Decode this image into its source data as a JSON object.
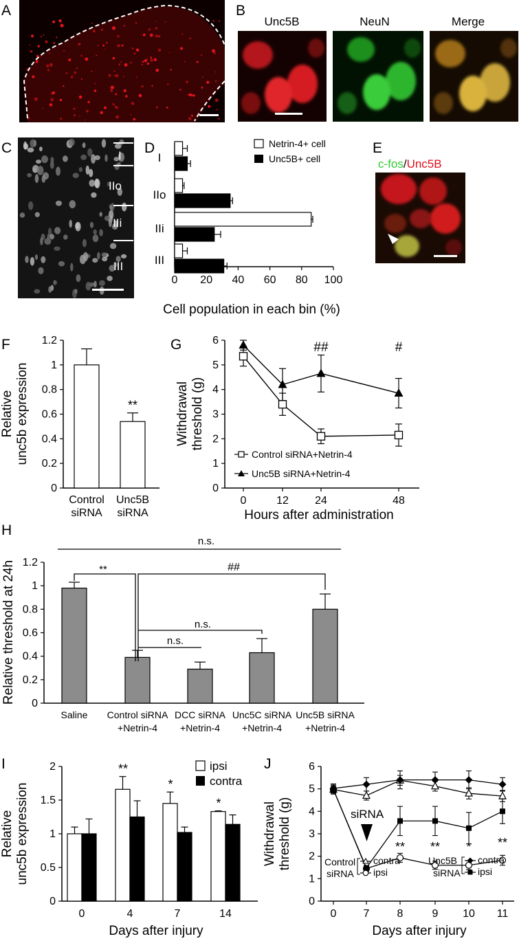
{
  "panel_letters": {
    "A": "A",
    "B": "B",
    "C": "C",
    "D": "D",
    "E": "E",
    "F": "F",
    "G": "G",
    "H": "H",
    "I": "I",
    "J": "J"
  },
  "panel_b": {
    "labels": [
      "Unc5B",
      "NeuN",
      "Merge"
    ]
  },
  "panel_c": {
    "layers": [
      "I",
      "IIo",
      "IIi",
      "III"
    ]
  },
  "panel_e": {
    "label_a": "c-fos",
    "sep": "/",
    "label_b": "Unc5B",
    "color_a": "#33cc33",
    "color_b": "#e0101a"
  },
  "colors": {
    "gray_bar": "#8c8c8c",
    "micro_red": "#d7161f",
    "micro_green": "#2fb52f"
  },
  "chart_data": [
    {
      "panel": "D",
      "type": "bar",
      "orientation": "horizontal",
      "categories": [
        "I",
        "IIo",
        "IIi",
        "III"
      ],
      "series": [
        {
          "name": "Netrin-4+ cell",
          "color": "#ffffff",
          "values": [
            5,
            5,
            86,
            5
          ],
          "errors": [
            3,
            1,
            1,
            3
          ]
        },
        {
          "name": "Unc5B+ cell",
          "color": "#000000",
          "values": [
            8,
            35,
            25,
            31
          ],
          "errors": [
            2,
            1.5,
            4,
            2
          ]
        }
      ],
      "xlabel": "Cell population in each bin (%)",
      "xlim": [
        0,
        100
      ],
      "xticks": [
        "0",
        "20",
        "40",
        "60",
        "80",
        "100"
      ],
      "legend": "top-right"
    },
    {
      "panel": "F",
      "type": "bar",
      "categories": [
        "Control\nsiRNA",
        "Unc5B\nsiRNA"
      ],
      "values": [
        1.0,
        0.54
      ],
      "errors": [
        0.13,
        0.07
      ],
      "annotations": [
        "",
        "**"
      ],
      "ylabel": "Relative\nunc5b expression",
      "ylim": [
        0,
        1.2
      ],
      "yticks": [
        "0",
        "0.2",
        "0.4",
        "0.6",
        "0.8",
        "1",
        "1.2"
      ]
    },
    {
      "panel": "G",
      "type": "line",
      "x": [
        0,
        12,
        24,
        48
      ],
      "series": [
        {
          "name": "Control siRNA+Netrin-4",
          "marker": "open-square",
          "values": [
            5.35,
            3.4,
            2.1,
            2.15
          ],
          "errors": [
            0.4,
            0.45,
            0.3,
            0.45
          ]
        },
        {
          "name": "Unc5B siRNA+Netrin-4",
          "marker": "filled-triangle",
          "values": [
            5.8,
            4.2,
            4.65,
            3.85
          ],
          "errors": [
            0.2,
            0.65,
            0.75,
            0.6
          ]
        }
      ],
      "annotations": [
        {
          "x": 24,
          "text": "##"
        },
        {
          "x": 48,
          "text": "#"
        }
      ],
      "xlabel": "Hours after administration",
      "ylabel": "Withdrawal\nthreshold (g)",
      "ylim": [
        0,
        6
      ],
      "yticks": [
        "0",
        "1",
        "2",
        "3",
        "4",
        "5",
        "6"
      ],
      "xticks": [
        "0",
        "12",
        "24",
        "48"
      ],
      "legend": "bottom-left"
    },
    {
      "panel": "H",
      "type": "bar",
      "categories": [
        "Saline",
        "Control siRNA\n+Netrin-4",
        "DCC siRNA\n+Netrin-4",
        "Unc5C siRNA\n+Netrin-4",
        "Unc5B siRNA\n+Netrin-4"
      ],
      "values": [
        0.98,
        0.39,
        0.29,
        0.43,
        0.8
      ],
      "errors": [
        0.05,
        0.06,
        0.06,
        0.12,
        0.13
      ],
      "brackets": [
        {
          "text": "n.s.",
          "from": 0,
          "to": 4
        },
        {
          "text": "**",
          "from": 0,
          "to": 1
        },
        {
          "text": "##",
          "from": 1,
          "to": 4
        },
        {
          "text": "n.s.",
          "from": 1,
          "to": 3
        },
        {
          "text": "n.s.",
          "from": 1,
          "to": 2
        }
      ],
      "ylabel": "Relative threshold at 24h",
      "ylim": [
        0,
        1.2
      ],
      "yticks": [
        "0",
        "0.2",
        "0.4",
        "0.6",
        "0.8",
        "1",
        "1.2"
      ]
    },
    {
      "panel": "I",
      "type": "bar",
      "categories": [
        "0",
        "4",
        "7",
        "14"
      ],
      "series": [
        {
          "name": "ipsi",
          "color": "#ffffff",
          "values": [
            1.0,
            1.66,
            1.45,
            1.33
          ],
          "errors": [
            0.1,
            0.19,
            0.17,
            0.01
          ]
        },
        {
          "name": "contra",
          "color": "#000000",
          "values": [
            1.0,
            1.25,
            1.02,
            1.14
          ],
          "errors": [
            0.22,
            0.24,
            0.08,
            0.14
          ]
        }
      ],
      "annotations": [
        "",
        "**",
        "*",
        "*"
      ],
      "xlabel": "Days after injury",
      "ylabel": "Relative\nunc5b expression",
      "ylim": [
        0,
        2
      ],
      "yticks": [
        "0",
        "0.5",
        "1",
        "1.5",
        "2"
      ],
      "legend": "top-right"
    },
    {
      "panel": "J",
      "type": "line",
      "x": [
        0,
        7,
        8,
        9,
        10,
        11
      ],
      "series": [
        {
          "name": "contra",
          "group": "Control siRNA",
          "marker": "open-triangle",
          "values": [
            4.97,
            4.7,
            5.38,
            5.12,
            4.8,
            4.68
          ],
          "errors": [
            0.2,
            0.2,
            0.22,
            0.22,
            0.25,
            0.25
          ]
        },
        {
          "name": "ipsi",
          "group": "Control siRNA",
          "marker": "open-circle",
          "values": [
            4.97,
            1.45,
            1.93,
            1.6,
            1.6,
            1.82
          ],
          "errors": [
            0.2,
            0.12,
            0.2,
            0.18,
            0.2,
            0.22
          ]
        },
        {
          "name": "contra",
          "group": "Unc5B siRNA",
          "marker": "filled-diamond",
          "values": [
            5.02,
            5.2,
            5.4,
            5.4,
            5.4,
            5.2
          ],
          "errors": [
            0.2,
            0.3,
            0.4,
            0.35,
            0.4,
            0.3
          ]
        },
        {
          "name": "ipsi",
          "group": "Unc5B siRNA",
          "marker": "filled-square",
          "values": [
            4.97,
            1.48,
            3.57,
            3.57,
            3.25,
            4.0
          ],
          "errors": [
            0.15,
            0.1,
            0.65,
            0.65,
            0.7,
            0.55
          ]
        }
      ],
      "annotations": [
        {
          "x": 8,
          "text": "**"
        },
        {
          "x": 9,
          "text": "**"
        },
        {
          "x": 10,
          "text": "*"
        },
        {
          "x": 11,
          "text": "**"
        }
      ],
      "arrow_label": "siRNA",
      "xlabel": "Days after injury",
      "ylabel": "Withdrawal\nthreshold (g)",
      "ylim": [
        0,
        6
      ],
      "yticks": [
        "0",
        "1",
        "2",
        "3",
        "4",
        "5",
        "6"
      ],
      "xticks": [
        "0",
        "7",
        "8",
        "9",
        "10",
        "11"
      ],
      "legend": "bottom"
    }
  ]
}
